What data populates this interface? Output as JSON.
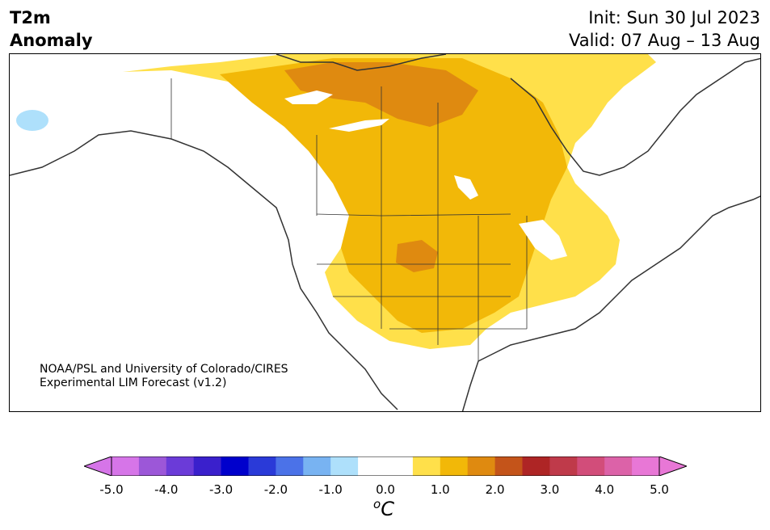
{
  "header": {
    "title_line1": "T2m",
    "title_line2": "Anomaly",
    "init": "Init: Sun 30 Jul 2023",
    "valid": "Valid: 07 Aug – 13 Aug"
  },
  "credit": {
    "line1": "NOAA/PSL and University of Colorado/CIRES",
    "line2": "Experimental LIM Forecast (v1.2)"
  },
  "colorbar": {
    "unit_base": "C",
    "unit_sup": "o",
    "ticks": [
      "-5.0",
      "-4.0",
      "-3.0",
      "-2.0",
      "-1.0",
      "0.0",
      "1.0",
      "2.0",
      "3.0",
      "4.0",
      "5.0"
    ],
    "colors": [
      "#d675e8",
      "#9c57d8",
      "#6b3bd8",
      "#3a20cc",
      "#0000cc",
      "#2a3ad8",
      "#4b72e8",
      "#78b3f2",
      "#aee0fb",
      "#ffffff",
      "#ffffff",
      "#ffe04a",
      "#f2b808",
      "#df8a10",
      "#c4541a",
      "#ae2525",
      "#bf3a4a",
      "#d24d7a",
      "#dc62a8",
      "#e877d6"
    ],
    "over_color": "#e877d6",
    "under_color": "#d675e8"
  },
  "map": {
    "colors": {
      "anom_0_5": "#ffe04a",
      "anom_1_0": "#f2b808",
      "anom_1_5": "#df8a10",
      "neg_0_5": "#aee0fb",
      "coast": "#333333"
    }
  }
}
